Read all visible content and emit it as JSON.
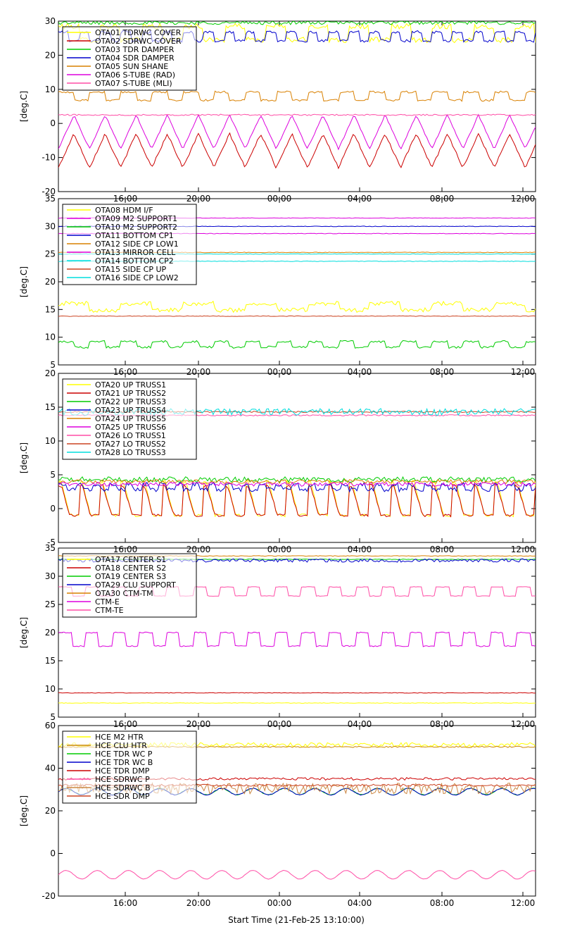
{
  "x_label": "Start Time (21-Feb-25 13:10:00)",
  "x_tick_labels": [
    "16:00",
    "20:00",
    "00:00",
    "04:00",
    "08:00",
    "12:00"
  ],
  "colors": {
    "yellow": "#ffff00",
    "red": "#cc0000",
    "green": "#00cc00",
    "blue": "#0000cc",
    "orange": "#d98000",
    "magenta": "#dd00dd",
    "pink": "#ff4da6",
    "cyan": "#00dddd",
    "tan": "#cc8844"
  },
  "chart_data": [
    {
      "type": "line",
      "ylabel": "[deg.C]",
      "ylim": [
        -20,
        30
      ],
      "yticks": [
        -20,
        -10,
        0,
        10,
        20,
        30
      ],
      "xticks": [
        "16:00",
        "20:00",
        "00:00",
        "04:00",
        "08:00",
        "12:00"
      ],
      "series": [
        {
          "name": "OTA01 TDRWC COVER",
          "color": "#ffff00",
          "shape": "square",
          "base": 26.5,
          "amp": 2,
          "period": 2.0,
          "noise": 0.8
        },
        {
          "name": "OTA02 SDRWC COVER",
          "color": "#cc0000",
          "shape": "tri",
          "base": -8,
          "amp": 5,
          "period": 1.5,
          "noise": 0.3
        },
        {
          "name": "OTA03 TDR DAMPER",
          "color": "#00cc00",
          "shape": "flat",
          "base": 29.5,
          "amp": 0,
          "period": 1,
          "noise": 0.5
        },
        {
          "name": "OTA04 SDR DAMPER",
          "color": "#0000cc",
          "shape": "square",
          "base": 25.5,
          "amp": 1.3,
          "period": 1.0,
          "noise": 0.4
        },
        {
          "name": "OTA05 SUN SHANE",
          "color": "#d98000",
          "shape": "square",
          "base": 8,
          "amp": 1.2,
          "period": 1.5,
          "noise": 0.3
        },
        {
          "name": "OTA06 S-TUBE (RAD)",
          "color": "#dd00dd",
          "shape": "tri",
          "base": -2.5,
          "amp": 5,
          "period": 1.5,
          "noise": 0.2
        },
        {
          "name": "OTA07 S-TUBE (MLI)",
          "color": "#ff4da6",
          "shape": "flat",
          "base": 2.5,
          "amp": 0,
          "period": 1,
          "noise": 0.2
        }
      ]
    },
    {
      "type": "line",
      "ylabel": "[deg.C]",
      "ylim": [
        5,
        35
      ],
      "yticks": [
        5,
        10,
        15,
        20,
        25,
        30,
        35
      ],
      "xticks": [
        "16:00",
        "20:00",
        "00:00",
        "04:00",
        "08:00",
        "12:00"
      ],
      "series": [
        {
          "name": "OTA08 HDM I/F",
          "color": "#ffff00",
          "shape": "square",
          "base": 15.5,
          "amp": 0.6,
          "period": 3.0,
          "noise": 0.4
        },
        {
          "name": "OTA09 M2 SUPPORT1",
          "color": "#dd00dd",
          "shape": "flat",
          "base": 31.5,
          "amp": 0,
          "period": 1,
          "noise": 0.05
        },
        {
          "name": "OTA10 M2 SUPPORT2",
          "color": "#00cc00",
          "shape": "square",
          "base": 8.7,
          "amp": 0.5,
          "period": 1.5,
          "noise": 0.2
        },
        {
          "name": "OTA11 BOTTOM CP1",
          "color": "#0000cc",
          "shape": "flat",
          "base": 30.0,
          "amp": 0,
          "period": 1,
          "noise": 0.05
        },
        {
          "name": "OTA12 SIDE CP LOW1",
          "color": "#d98000",
          "shape": "flat",
          "base": 25.3,
          "amp": 0,
          "period": 1,
          "noise": 0.05
        },
        {
          "name": "OTA13 MIRROR CELL",
          "color": "#dd00dd",
          "shape": "flat",
          "base": 28.7,
          "amp": 0,
          "period": 1,
          "noise": 0.05
        },
        {
          "name": "OTA14 BOTTOM CP2",
          "color": "#00dddd",
          "shape": "flat",
          "base": 23.7,
          "amp": 0,
          "period": 1,
          "noise": 0.05
        },
        {
          "name": "OTA15 SIDE CP UP",
          "color": "#cc4422",
          "shape": "flat",
          "base": 13.8,
          "amp": 0,
          "period": 1,
          "noise": 0.05
        },
        {
          "name": "OTA16 SIDE CP LOW2",
          "color": "#00dddd",
          "shape": "flat",
          "base": 25.0,
          "amp": 0,
          "period": 1,
          "noise": 0.05
        }
      ]
    },
    {
      "type": "line",
      "ylabel": "[deg.C]",
      "ylim": [
        -5,
        20
      ],
      "yticks": [
        -5,
        0,
        5,
        10,
        15,
        20
      ],
      "xticks": [
        "16:00",
        "20:00",
        "00:00",
        "04:00",
        "08:00",
        "12:00"
      ],
      "series": [
        {
          "name": "OTA20 UP TRUSS1",
          "color": "#ffff00",
          "shape": "saw",
          "base": 1.5,
          "amp": 2.5,
          "period": 1.0,
          "noise": 0.2
        },
        {
          "name": "OTA21 UP TRUSS2",
          "color": "#cc0000",
          "shape": "saw",
          "base": 1.2,
          "amp": 2.2,
          "period": 1.0,
          "noise": 0.2
        },
        {
          "name": "OTA22 UP TRUSS3",
          "color": "#00cc00",
          "shape": "flat",
          "base": 4.3,
          "amp": 0,
          "period": 1,
          "noise": 0.4
        },
        {
          "name": "OTA23 UP TRUSS4",
          "color": "#0000cc",
          "shape": "square",
          "base": 3.2,
          "amp": 0.4,
          "period": 0.8,
          "noise": 0.3
        },
        {
          "name": "OTA24 UP TRUSS5",
          "color": "#d98000",
          "shape": "flat",
          "base": 4.0,
          "amp": 0,
          "period": 1,
          "noise": 0.3
        },
        {
          "name": "OTA25 UP TRUSS6",
          "color": "#dd00dd",
          "shape": "flat",
          "base": 3.6,
          "amp": 0,
          "period": 1,
          "noise": 0.3
        },
        {
          "name": "OTA26 LO TRUSS1",
          "color": "#ff4da6",
          "shape": "flat",
          "base": 13.8,
          "amp": 0,
          "period": 1,
          "noise": 0.1
        },
        {
          "name": "OTA27 LO TRUSS2",
          "color": "#cc4422",
          "shape": "flat",
          "base": 14.3,
          "amp": 0,
          "period": 1,
          "noise": 0.1
        },
        {
          "name": "OTA28 LO TRUSS3",
          "color": "#00dddd",
          "shape": "flat",
          "base": 14.3,
          "amp": 0,
          "period": 1,
          "noise": 0.5
        }
      ]
    },
    {
      "type": "line",
      "ylabel": "[deg.C]",
      "ylim": [
        5,
        35
      ],
      "yticks": [
        5,
        10,
        15,
        20,
        25,
        30,
        35
      ],
      "xticks": [
        "16:00",
        "20:00",
        "00:00",
        "04:00",
        "08:00",
        "12:00"
      ],
      "series": [
        {
          "name": "OTA17 CENTER S1",
          "color": "#ffff00",
          "shape": "flat",
          "base": 7.5,
          "amp": 0,
          "period": 1,
          "noise": 0.05
        },
        {
          "name": "OTA18 CENTER S2",
          "color": "#cc0000",
          "shape": "flat",
          "base": 9.3,
          "amp": 0,
          "period": 1,
          "noise": 0.05
        },
        {
          "name": "OTA19 CENTER S3",
          "color": "#00cc00",
          "shape": "flat",
          "base": 33.0,
          "amp": 0,
          "period": 1,
          "noise": 0.05
        },
        {
          "name": "OTA29 CLU SUPPORT",
          "color": "#0000cc",
          "shape": "flat",
          "base": 32.8,
          "amp": 0,
          "period": 1,
          "noise": 0.3
        },
        {
          "name": "OTA30 CTM-TM",
          "color": "#d98000",
          "shape": "flat",
          "base": 33.6,
          "amp": 0,
          "period": 1,
          "noise": 0.05
        },
        {
          "name": "CTM-E",
          "color": "#dd00dd",
          "shape": "square",
          "base": 18.8,
          "amp": 1.2,
          "period": 1.3,
          "noise": 0.1
        },
        {
          "name": "CTM-TE",
          "color": "#ff4da6",
          "shape": "square",
          "base": 27.3,
          "amp": 0.8,
          "period": 1.3,
          "noise": 0.05
        }
      ]
    },
    {
      "type": "line",
      "ylabel": "[deg.C]",
      "ylim": [
        -20,
        60
      ],
      "yticks": [
        -20,
        0,
        20,
        40,
        60
      ],
      "xticks": [
        "16:00",
        "20:00",
        "00:00",
        "04:00",
        "08:00",
        "12:00"
      ],
      "series": [
        {
          "name": "HCE M2 HTR",
          "color": "#ffff00",
          "shape": "flat",
          "base": 51,
          "amp": 0,
          "period": 1,
          "noise": 1.0
        },
        {
          "name": "HCE CLU HTR",
          "color": "#cc8800",
          "shape": "flat",
          "base": 50,
          "amp": 0,
          "period": 1,
          "noise": 0.3
        },
        {
          "name": "HCE TDR WC P",
          "color": "#00cc00",
          "shape": "sine",
          "base": 29,
          "amp": 1.5,
          "period": 1.5,
          "noise": 0.2
        },
        {
          "name": "HCE TDR WC B",
          "color": "#0000cc",
          "shape": "sine",
          "base": 29,
          "amp": 1.5,
          "period": 1.5,
          "noise": 0.2
        },
        {
          "name": "HCE TDR DMP",
          "color": "#cc0000",
          "shape": "flat",
          "base": 35,
          "amp": 0,
          "period": 1,
          "noise": 0.6
        },
        {
          "name": "HCE SDRWC P",
          "color": "#ff4da6",
          "shape": "sine",
          "base": -10,
          "amp": 2,
          "period": 1.5,
          "noise": 0.1
        },
        {
          "name": "HCE SDRWC B",
          "color": "#cc8844",
          "shape": "flat",
          "base": 30.5,
          "amp": 0,
          "period": 1,
          "noise": 2.5
        },
        {
          "name": "HCE SDR DMP",
          "color": "#cc4422",
          "shape": "flat",
          "base": 32,
          "amp": 0,
          "period": 1,
          "noise": 0.5
        }
      ]
    }
  ]
}
